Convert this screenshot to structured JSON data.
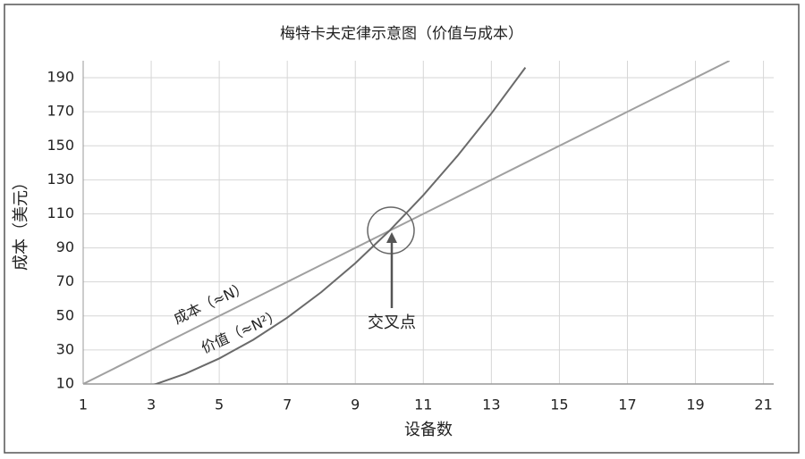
{
  "chart_data": {
    "type": "line",
    "title": "梅特卡夫定律示意图（价值与成本）",
    "xlabel": "设备数",
    "ylabel": "成本（美元）",
    "x": [
      1,
      2,
      3,
      4,
      5,
      6,
      7,
      8,
      9,
      10,
      11,
      12,
      13,
      14,
      15,
      16,
      17,
      18,
      19,
      20
    ],
    "series": [
      {
        "name": "成本（≈N）",
        "color": "#a0a0a0",
        "values": [
          10,
          20,
          30,
          40,
          50,
          60,
          70,
          80,
          90,
          100,
          110,
          120,
          130,
          140,
          150,
          160,
          170,
          180,
          190,
          200
        ]
      },
      {
        "name": "价值（≈N²）",
        "color": "#6a6a6a",
        "values": [
          null,
          null,
          9,
          16,
          25,
          36,
          49,
          64,
          81,
          100,
          121,
          144,
          169,
          196,
          null,
          null,
          null,
          null,
          null,
          null
        ]
      }
    ],
    "annotations": [
      "交叉点"
    ],
    "xlim": [
      1,
      21.3
    ],
    "ylim": [
      10,
      200
    ],
    "xticks": [
      1,
      3,
      5,
      7,
      9,
      11,
      13,
      15,
      17,
      19,
      21
    ],
    "yticks": [
      10,
      30,
      50,
      70,
      90,
      110,
      130,
      150,
      170,
      190
    ],
    "grid": true
  }
}
